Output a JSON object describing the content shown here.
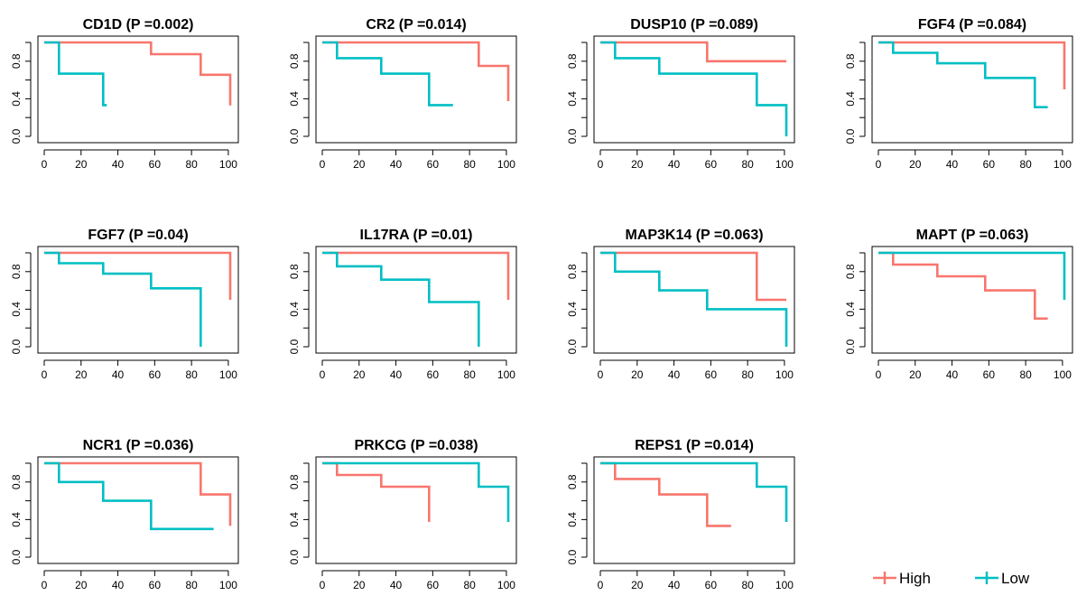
{
  "colors": {
    "high": "#F8766D",
    "low": "#00BFC4",
    "axis": "#000000"
  },
  "legend": {
    "high_label": "High",
    "low_label": "Low"
  },
  "chart_data": [
    {
      "type": "line",
      "title": "CD1D (P =0.002)",
      "xlim": [
        0,
        102
      ],
      "ylim": [
        0,
        1
      ],
      "grid": false,
      "x_ticks": [
        "0",
        "20",
        "40",
        "60",
        "80",
        "100"
      ],
      "y_ticks": [
        "0.0",
        "0.4",
        "0.8"
      ],
      "series": [
        {
          "name": "High",
          "x": [
            0,
            58,
            58,
            85,
            85,
            101,
            101
          ],
          "y": [
            1,
            1,
            0.875,
            0.875,
            0.656,
            0.656,
            0.33
          ]
        },
        {
          "name": "Low",
          "x": [
            0,
            8,
            8,
            32,
            32,
            34
          ],
          "y": [
            1,
            1,
            0.667,
            0.667,
            0.333,
            0.333
          ]
        }
      ]
    },
    {
      "type": "line",
      "title": "CR2 (P =0.014)",
      "xlim": [
        0,
        102
      ],
      "ylim": [
        0,
        1
      ],
      "grid": false,
      "x_ticks": [
        "0",
        "20",
        "40",
        "60",
        "80",
        "100"
      ],
      "y_ticks": [
        "0.0",
        "0.4",
        "0.8"
      ],
      "series": [
        {
          "name": "High",
          "x": [
            0,
            85,
            85,
            101,
            101
          ],
          "y": [
            1,
            1,
            0.75,
            0.75,
            0.375
          ]
        },
        {
          "name": "Low",
          "x": [
            0,
            8,
            8,
            32,
            32,
            58,
            58,
            71
          ],
          "y": [
            1,
            1,
            0.833,
            0.833,
            0.667,
            0.667,
            0.333,
            0.333
          ]
        }
      ]
    },
    {
      "type": "line",
      "title": "DUSP10 (P =0.089)",
      "xlim": [
        0,
        102
      ],
      "ylim": [
        0,
        1
      ],
      "grid": false,
      "x_ticks": [
        "0",
        "20",
        "40",
        "60",
        "80",
        "100"
      ],
      "y_ticks": [
        "0.0",
        "0.4",
        "0.8"
      ],
      "series": [
        {
          "name": "High",
          "x": [
            0,
            58,
            58,
            101
          ],
          "y": [
            1,
            1,
            0.8,
            0.8
          ]
        },
        {
          "name": "Low",
          "x": [
            0,
            8,
            8,
            32,
            32,
            85,
            85,
            101,
            101
          ],
          "y": [
            1,
            1,
            0.833,
            0.833,
            0.667,
            0.667,
            0.333,
            0.333,
            0
          ]
        }
      ]
    },
    {
      "type": "line",
      "title": "FGF4 (P =0.084)",
      "xlim": [
        0,
        102
      ],
      "ylim": [
        0,
        1
      ],
      "grid": false,
      "x_ticks": [
        "0",
        "20",
        "40",
        "60",
        "80",
        "100"
      ],
      "y_ticks": [
        "0.0",
        "0.4",
        "0.8"
      ],
      "series": [
        {
          "name": "High",
          "x": [
            0,
            101,
            101
          ],
          "y": [
            1,
            1,
            0.5
          ]
        },
        {
          "name": "Low",
          "x": [
            0,
            8,
            8,
            32,
            32,
            58,
            58,
            85,
            85,
            92
          ],
          "y": [
            1,
            1,
            0.889,
            0.889,
            0.778,
            0.778,
            0.622,
            0.622,
            0.311,
            0.311
          ]
        }
      ]
    },
    {
      "type": "line",
      "title": "FGF7 (P =0.04)",
      "xlim": [
        0,
        102
      ],
      "ylim": [
        0,
        1
      ],
      "grid": false,
      "x_ticks": [
        "0",
        "20",
        "40",
        "60",
        "80",
        "100"
      ],
      "y_ticks": [
        "0.0",
        "0.4",
        "0.8"
      ],
      "series": [
        {
          "name": "High",
          "x": [
            0,
            101,
            101
          ],
          "y": [
            1,
            1,
            0.5
          ]
        },
        {
          "name": "Low",
          "x": [
            0,
            8,
            8,
            32,
            32,
            58,
            58,
            85,
            85
          ],
          "y": [
            1,
            1,
            0.889,
            0.889,
            0.778,
            0.778,
            0.622,
            0.622,
            0
          ]
        }
      ]
    },
    {
      "type": "line",
      "title": "IL17RA (P =0.01)",
      "xlim": [
        0,
        102
      ],
      "ylim": [
        0,
        1
      ],
      "grid": false,
      "x_ticks": [
        "0",
        "20",
        "40",
        "60",
        "80",
        "100"
      ],
      "y_ticks": [
        "0.0",
        "0.4",
        "0.8"
      ],
      "series": [
        {
          "name": "High",
          "x": [
            0,
            101,
            101
          ],
          "y": [
            1,
            1,
            0.5
          ]
        },
        {
          "name": "Low",
          "x": [
            0,
            8,
            8,
            32,
            32,
            58,
            58,
            85,
            85
          ],
          "y": [
            1,
            1,
            0.857,
            0.857,
            0.714,
            0.714,
            0.476,
            0.476,
            0
          ]
        }
      ]
    },
    {
      "type": "line",
      "title": "MAP3K14 (P =0.063)",
      "xlim": [
        0,
        102
      ],
      "ylim": [
        0,
        1
      ],
      "grid": false,
      "x_ticks": [
        "0",
        "20",
        "40",
        "60",
        "80",
        "100"
      ],
      "y_ticks": [
        "0.0",
        "0.4",
        "0.8"
      ],
      "series": [
        {
          "name": "High",
          "x": [
            0,
            85,
            85,
            101
          ],
          "y": [
            1,
            1,
            0.5,
            0.5
          ]
        },
        {
          "name": "Low",
          "x": [
            0,
            8,
            8,
            32,
            32,
            58,
            58,
            101,
            101
          ],
          "y": [
            1,
            1,
            0.8,
            0.8,
            0.6,
            0.6,
            0.4,
            0.4,
            0
          ]
        }
      ]
    },
    {
      "type": "line",
      "title": "MAPT (P =0.063)",
      "xlim": [
        0,
        102
      ],
      "ylim": [
        0,
        1
      ],
      "grid": false,
      "x_ticks": [
        "0",
        "20",
        "40",
        "60",
        "80",
        "100"
      ],
      "y_ticks": [
        "0.0",
        "0.4",
        "0.8"
      ],
      "series": [
        {
          "name": "High",
          "x": [
            0,
            8,
            8,
            32,
            32,
            58,
            58,
            85,
            85,
            92
          ],
          "y": [
            1,
            1,
            0.875,
            0.875,
            0.75,
            0.75,
            0.6,
            0.6,
            0.3,
            0.3
          ]
        },
        {
          "name": "Low",
          "x": [
            0,
            101,
            101
          ],
          "y": [
            1,
            1,
            0.5
          ]
        }
      ]
    },
    {
      "type": "line",
      "title": "NCR1 (P =0.036)",
      "xlim": [
        0,
        102
      ],
      "ylim": [
        0,
        1
      ],
      "grid": false,
      "x_ticks": [
        "0",
        "20",
        "40",
        "60",
        "80",
        "100"
      ],
      "y_ticks": [
        "0.0",
        "0.4",
        "0.8"
      ],
      "series": [
        {
          "name": "High",
          "x": [
            0,
            85,
            85,
            101,
            101
          ],
          "y": [
            1,
            1,
            0.667,
            0.667,
            0.333
          ]
        },
        {
          "name": "Low",
          "x": [
            0,
            8,
            8,
            32,
            32,
            58,
            58,
            92
          ],
          "y": [
            1,
            1,
            0.8,
            0.8,
            0.6,
            0.6,
            0.3,
            0.3
          ]
        }
      ]
    },
    {
      "type": "line",
      "title": "PRKCG (P =0.038)",
      "xlim": [
        0,
        102
      ],
      "ylim": [
        0,
        1
      ],
      "grid": false,
      "x_ticks": [
        "0",
        "20",
        "40",
        "60",
        "80",
        "100"
      ],
      "y_ticks": [
        "0.0",
        "0.4",
        "0.8"
      ],
      "series": [
        {
          "name": "High",
          "x": [
            0,
            8,
            8,
            32,
            32,
            58,
            58
          ],
          "y": [
            1,
            1,
            0.875,
            0.875,
            0.75,
            0.75,
            0.375
          ]
        },
        {
          "name": "Low",
          "x": [
            0,
            85,
            85,
            101,
            101
          ],
          "y": [
            1,
            1,
            0.75,
            0.75,
            0.375
          ]
        }
      ]
    },
    {
      "type": "line",
      "title": "REPS1 (P =0.014)",
      "xlim": [
        0,
        102
      ],
      "ylim": [
        0,
        1
      ],
      "grid": false,
      "x_ticks": [
        "0",
        "20",
        "40",
        "60",
        "80",
        "100"
      ],
      "y_ticks": [
        "0.0",
        "0.4",
        "0.8"
      ],
      "series": [
        {
          "name": "High",
          "x": [
            0,
            8,
            8,
            32,
            32,
            58,
            58,
            71
          ],
          "y": [
            1,
            1,
            0.833,
            0.833,
            0.667,
            0.667,
            0.333,
            0.333
          ]
        },
        {
          "name": "Low",
          "x": [
            0,
            85,
            85,
            101,
            101
          ],
          "y": [
            1,
            1,
            0.75,
            0.75,
            0.375
          ]
        }
      ]
    }
  ]
}
